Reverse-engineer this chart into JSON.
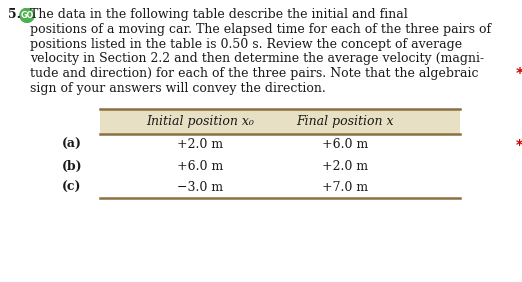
{
  "problem_number": "5.",
  "go_circle_color": "#4CAF50",
  "go_text": "GO",
  "para_lines": [
    "The data in the following table describe the initial and final",
    "positions of a moving car. The elapsed time for each of the three pairs of",
    "positions listed in the table is 0.50 s. Review the concept of average",
    "velocity in Section 2.2 and then determine the average velocity (magni-",
    "tude and direction) for each of the three pairs. Note that the algebraic",
    "sign of your answers will convey the direction."
  ],
  "asterisk_color": "#CC0000",
  "double_asterisk_color": "#CC0000",
  "table_header_bg": "#E8E0C4",
  "table_border_color": "#8B7040",
  "col1_header": "Initial position x₀",
  "col2_header": "Final position x",
  "rows": [
    {
      "label": "(a)",
      "col1": "+2.0 m",
      "col2": "+6.0 m"
    },
    {
      "label": "(b)",
      "col1": "+6.0 m",
      "col2": "+2.0 m"
    },
    {
      "label": "(c)",
      "col1": "−3.0 m",
      "col2": "+7.0 m"
    }
  ],
  "font_color": "#1a1a1a",
  "bg_color": "#ffffff",
  "font_size": 9.0,
  "fig_w": 5.22,
  "fig_h": 2.82
}
